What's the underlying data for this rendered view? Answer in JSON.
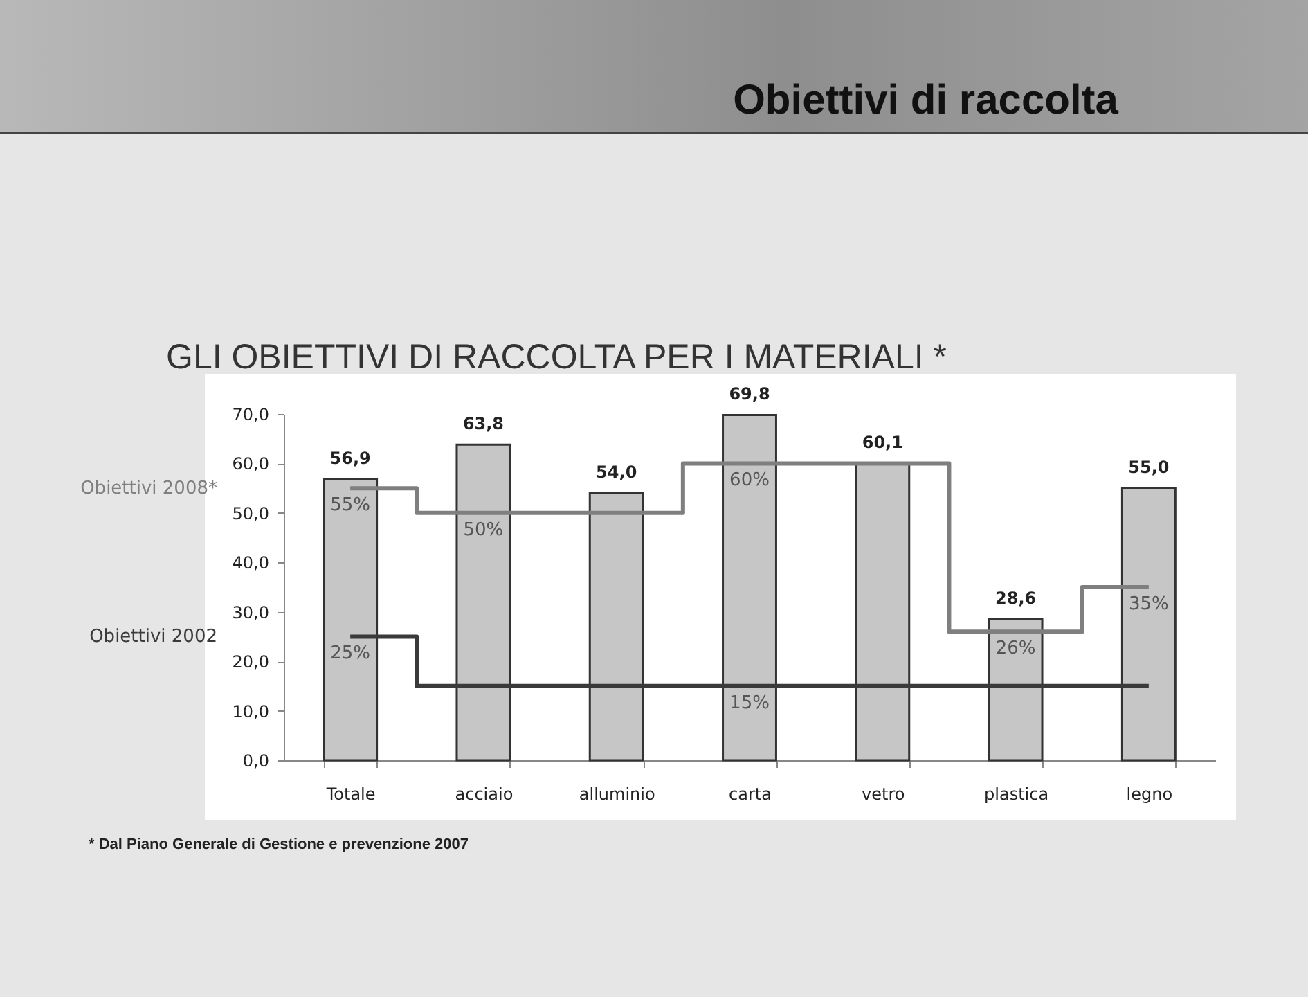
{
  "chart_data": {
    "type": "bar",
    "title": "Obiettivi di raccolta",
    "subtitle": "GLI OBIETTIVI DI RACCOLTA PER I MATERIALI *",
    "annotations": [
      "* Dal Piano Generale di Gestione e prevenzione 2007"
    ],
    "categories": [
      "Totale",
      "acciaio",
      "alluminio",
      "carta",
      "vetro",
      "plastica",
      "legno"
    ],
    "ylim": [
      0,
      70
    ],
    "yticks": [
      {
        "value": 0,
        "label": "0,0"
      },
      {
        "value": 10,
        "label": "10,0"
      },
      {
        "value": 20,
        "label": "20,0"
      },
      {
        "value": 30,
        "label": "30,0"
      },
      {
        "value": 40,
        "label": "40,0"
      },
      {
        "value": 50,
        "label": "50,0"
      },
      {
        "value": 60,
        "label": "60,0"
      },
      {
        "value": 70,
        "label": "70,0"
      }
    ],
    "series": [
      {
        "color": "#c6c6c6",
        "values": [
          56.9,
          63.8,
          54.0,
          69.8,
          60.1,
          28.6,
          55.0
        ],
        "value_labels": [
          "56,9",
          "63,8",
          "54,0",
          "69,8",
          "60,1",
          "28,6",
          "55,0"
        ]
      },
      {
        "type": "step",
        "name": "Obiettivi 2008*",
        "color": "#7f7f7f",
        "values": [
          55,
          50,
          50,
          60,
          60,
          26,
          35
        ],
        "value_labels": [
          "55%",
          "50%",
          null,
          "60%",
          null,
          "26%",
          "35%"
        ]
      },
      {
        "type": "step",
        "name": "Obiettivi 2002",
        "color": "#3a3a3a",
        "values": [
          25,
          15,
          15,
          15,
          15,
          15,
          15
        ],
        "value_labels": [
          "25%",
          null,
          null,
          "15%",
          null,
          null,
          null
        ]
      }
    ]
  }
}
